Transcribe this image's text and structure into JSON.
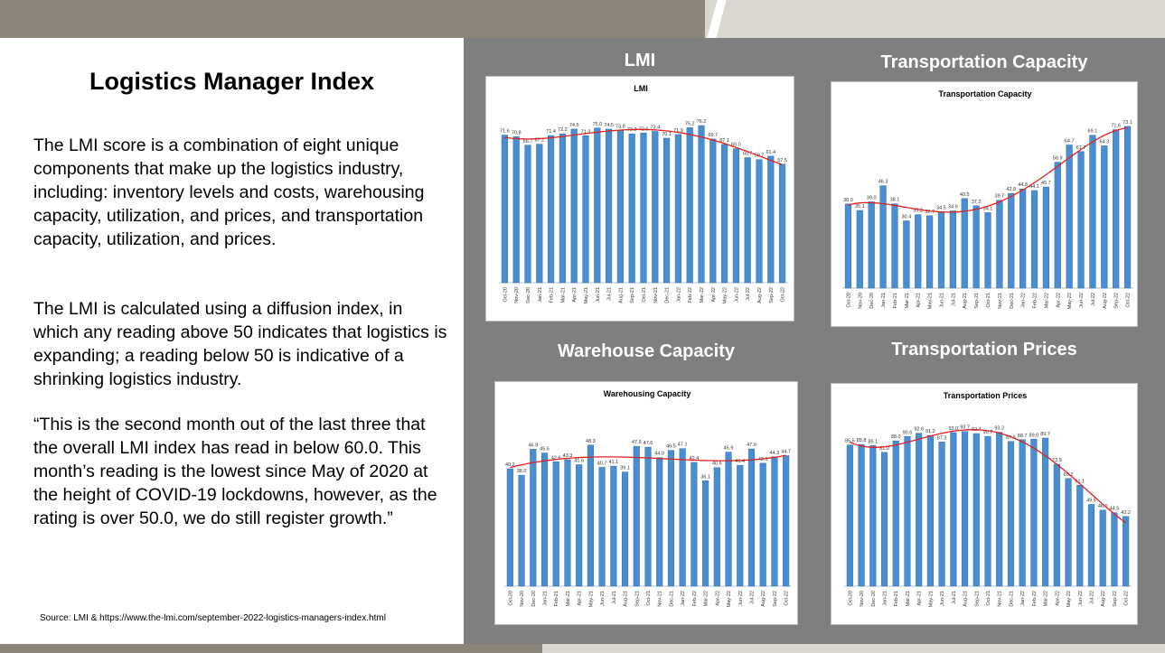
{
  "left": {
    "title": "Logistics Manager Index",
    "paragraph1": "The LMI score is a combination of eight unique components that make up the logistics industry, including: inventory levels and costs, warehousing capacity, utilization, and prices, and transportation capacity, utilization, and prices.",
    "paragraph2": "The LMI is calculated using a diffusion index, in which any reading above 50  indicates that logistics is expanding; a reading below 50 is indicative of a shrinking logistics industry.",
    "paragraph3": "“This is the second month out of the last three that the overall LMI index has read in below 60.0. This month’s reading is the lowest since May of 2020 at the height of COVID-19 lockdowns, however, as the rating is over 50.0, we do still register growth.”",
    "source": "Source: LMI & https://www.the-lmi.com/september-2022-logistics-managers-index.html"
  },
  "colors": {
    "bar": "#4a8ed1",
    "bar_edge": "#2e6fb0",
    "trend": "#e02020",
    "panel_bg": "#7f7f7f"
  },
  "chart_data": [
    {
      "type": "bar",
      "heading": "LMI",
      "title": "LMI",
      "categories": [
        "Oct-20",
        "Nov-20",
        "Dec-20",
        "Jan-21",
        "Feb-21",
        "Mar-21",
        "Apr-21",
        "May-21",
        "Jun-21",
        "Jul-21",
        "Aug-21",
        "Sep-21",
        "Oct-21",
        "Nov-21",
        "Dec-21",
        "Jan-22",
        "Feb-22",
        "Mar-22",
        "Apr-22",
        "May-22",
        "Jun-22",
        "Jul-22",
        "Aug-22",
        "Sep-22",
        "Oct-22"
      ],
      "values": [
        71.6,
        70.8,
        66.7,
        67.2,
        71.4,
        72.2,
        74.5,
        71.3,
        75.0,
        74.5,
        73.8,
        72.2,
        72.6,
        73.4,
        70.1,
        71.9,
        75.2,
        76.2,
        69.7,
        67.1,
        65.0,
        60.7,
        59.7,
        61.4,
        57.5
      ],
      "trend": "polynomial",
      "ylim": [
        0,
        85
      ]
    },
    {
      "type": "bar",
      "heading": "Transportation Capacity",
      "title": "Transportation Capacity",
      "categories": [
        "Oct-20",
        "Nov-20",
        "Dec-20",
        "Jan-21",
        "Feb-21",
        "Mar-21",
        "Apr-21",
        "May-21",
        "Jun-21",
        "Jul-21",
        "Aug-21",
        "Sep-21",
        "Oct-21",
        "Nov-21",
        "Dec-21",
        "Jan-22",
        "Feb-22",
        "Mar-22",
        "Apr-22",
        "May-22",
        "Jun-22",
        "Jul-22",
        "Aug-22",
        "Sep-22",
        "Oct-22"
      ],
      "values": [
        38.0,
        35.1,
        39.0,
        46.3,
        38.1,
        30.4,
        33.2,
        32.7,
        34.5,
        34.9,
        40.5,
        37.2,
        34.1,
        39.7,
        42.8,
        44.8,
        44.1,
        45.7,
        56.9,
        64.7,
        61.7,
        69.1,
        64.3,
        71.6,
        73.1
      ],
      "trend": "polynomial",
      "ylim": [
        0,
        80
      ]
    },
    {
      "type": "bar",
      "heading": "Warehouse Capacity",
      "title": "Warehousing Capacity",
      "categories": [
        "Oct-20",
        "Nov-20",
        "Dec-20",
        "Jan-21",
        "Feb-21",
        "Mar-21",
        "Apr-21",
        "May-21",
        "Jun-21",
        "Jul-21",
        "Aug-21",
        "Sep-21",
        "Oct-21",
        "Nov-21",
        "Dec-21",
        "Jan-22",
        "Feb-22",
        "Mar-22",
        "Apr-22",
        "May-22",
        "Jun-22",
        "Jul-22",
        "Aug-22",
        "Sep-22",
        "Oct-22"
      ],
      "values": [
        40.2,
        38.0,
        46.9,
        45.6,
        42.6,
        43.3,
        41.6,
        48.3,
        40.7,
        41.1,
        39.1,
        47.9,
        47.6,
        44.0,
        46.5,
        47.1,
        42.4,
        36.1,
        40.6,
        45.9,
        41.4,
        47.0,
        42.1,
        44.3,
        44.7
      ],
      "trend": "polynomial",
      "ylim": [
        0,
        60
      ]
    },
    {
      "type": "bar",
      "heading": "Transportation Prices",
      "title": "Transportation Prices",
      "categories": [
        "Oct-20",
        "Nov-20",
        "Dec-20",
        "Jan-21",
        "Feb-21",
        "Mar-21",
        "Apr-21",
        "May-21",
        "Jun-21",
        "Jul-21",
        "Aug-21",
        "Sep-21",
        "Oct-21",
        "Nov-21",
        "Dec-21",
        "Jan-22",
        "Feb-22",
        "Mar-22",
        "Apr-22",
        "May-22",
        "Jun-22",
        "Jul-22",
        "Aug-22",
        "Sep-22",
        "Oct-22"
      ],
      "values": [
        85.5,
        85.8,
        85.1,
        81.0,
        88.0,
        90.6,
        92.6,
        91.2,
        87.3,
        93.0,
        93.7,
        92.4,
        90.7,
        93.2,
        87.6,
        88.7,
        89.0,
        89.7,
        73.9,
        65.2,
        61.1,
        49.5,
        46.0,
        44.5,
        42.2
      ],
      "trend": "polynomial",
      "ylim": [
        0,
        105
      ]
    }
  ]
}
